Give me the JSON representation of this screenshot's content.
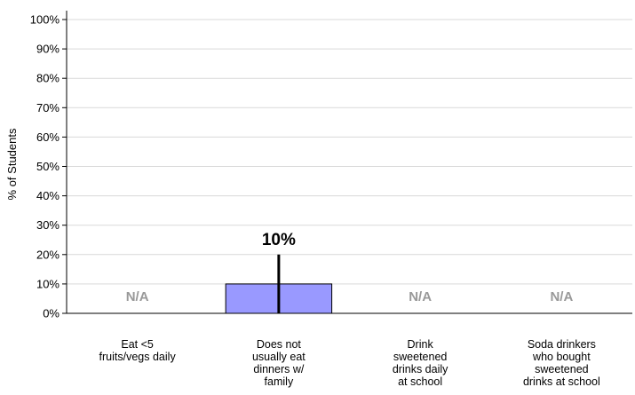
{
  "chart_data": {
    "type": "bar",
    "title": "",
    "ylabel": "% of Students",
    "xlabel": "",
    "ylim": [
      0,
      100
    ],
    "yticks": [
      "0%",
      "10%",
      "20%",
      "30%",
      "40%",
      "50%",
      "60%",
      "70%",
      "80%",
      "90%",
      "100%"
    ],
    "grid": true,
    "categories": [
      [
        "Eat <5",
        "fruits/vegs daily"
      ],
      [
        "Does not",
        "usually eat",
        "dinners w/",
        "family"
      ],
      [
        "Drink",
        "sweetened",
        "drinks daily",
        "at school"
      ],
      [
        "Soda drinkers",
        "who bought",
        "sweetened",
        "drinks at school"
      ]
    ],
    "values": [
      null,
      10,
      null,
      null
    ],
    "error_upper": [
      null,
      20,
      null,
      null
    ],
    "error_lower": [
      null,
      0,
      null,
      null
    ],
    "data_labels": [
      "N/A",
      "10%",
      "N/A",
      "N/A"
    ],
    "colors": {
      "bar": "#9999ff",
      "bar_border": "#000000",
      "grid": "#d9d9d9",
      "axis": "#000000",
      "na_text": "#999999"
    }
  }
}
